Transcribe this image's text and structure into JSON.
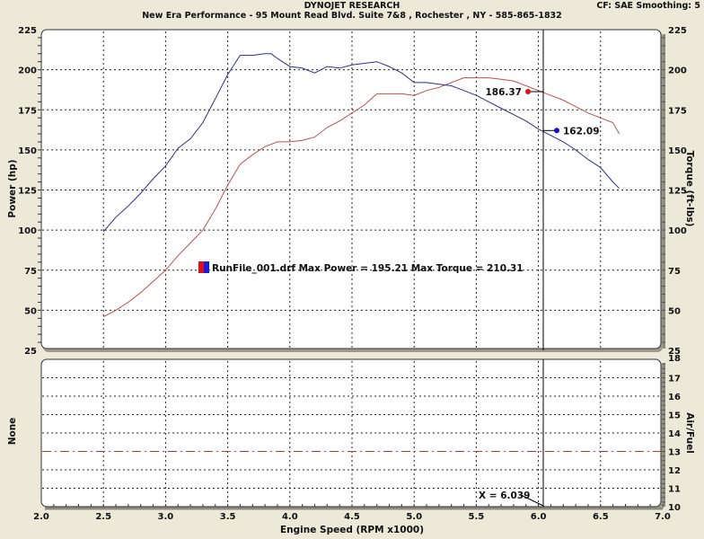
{
  "header": {
    "title": "DYNOJET RESEARCH",
    "subtitle": "New Era Performance - 95 Mount Read Blvd. Suite 7&8 , Rochester , NY - 585-865-1832",
    "settings": "CF: SAE  Smoothing: 5"
  },
  "legend": {
    "text": "RunFile_001.drf Max Power = 195.21 Max Torque = 210.31"
  },
  "cursor": {
    "label": "X = 6.039",
    "x": 6.039,
    "power_value": "186.37",
    "torque_value": "162.09"
  },
  "colors": {
    "power": "#c0504d",
    "torque": "#2b2f8f",
    "af_reference": "#c0392b",
    "background": "#ece9d8",
    "plot_bg": "#ffffff"
  },
  "chart_data": [
    {
      "type": "line",
      "title": "DYNOJET RESEARCH",
      "xlabel": "Engine Speed (RPM x1000)",
      "ylabel": "Power (hp)",
      "ylabel_right": "Torque (ft-lbs)",
      "xlim": [
        2.0,
        7.0
      ],
      "ylim": [
        25,
        225
      ],
      "x_ticks": [
        "2.0",
        "2.5",
        "3.0",
        "3.5",
        "4.0",
        "4.5",
        "5.0",
        "5.5",
        "6.0",
        "6.5",
        "7.0"
      ],
      "y_ticks": [
        "25",
        "50",
        "75",
        "100",
        "125",
        "150",
        "175",
        "200",
        "225"
      ],
      "grid": true,
      "legend": [
        "RunFile_001.drf Max Power = 195.21 Max Torque = 210.31"
      ],
      "series": [
        {
          "name": "Power (hp)",
          "color": "#c0504d",
          "x": [
            2.5,
            2.6,
            2.7,
            2.8,
            2.9,
            3.0,
            3.1,
            3.2,
            3.3,
            3.4,
            3.5,
            3.6,
            3.7,
            3.8,
            3.9,
            4.0,
            4.1,
            4.2,
            4.3,
            4.4,
            4.5,
            4.6,
            4.7,
            4.8,
            4.9,
            5.0,
            5.1,
            5.2,
            5.3,
            5.4,
            5.5,
            5.6,
            5.7,
            5.8,
            5.9,
            6.0,
            6.1,
            6.2,
            6.3,
            6.4,
            6.5,
            6.6,
            6.65
          ],
          "values": [
            46,
            50,
            55,
            61,
            68,
            75,
            84,
            92,
            100,
            113,
            128,
            141,
            147,
            152,
            155,
            155,
            156,
            158,
            164,
            168,
            173,
            178,
            185,
            185,
            185,
            184,
            187,
            189,
            192,
            195,
            195,
            195,
            194,
            193,
            190,
            187,
            184,
            181,
            177,
            173,
            170,
            167,
            160
          ]
        },
        {
          "name": "Torque (ft-lbs)",
          "color": "#2b2f8f",
          "x": [
            2.5,
            2.6,
            2.7,
            2.8,
            2.9,
            3.0,
            3.1,
            3.2,
            3.3,
            3.4,
            3.5,
            3.6,
            3.7,
            3.8,
            3.85,
            3.9,
            4.0,
            4.1,
            4.2,
            4.3,
            4.4,
            4.5,
            4.6,
            4.7,
            4.8,
            4.9,
            5.0,
            5.1,
            5.2,
            5.3,
            5.4,
            5.5,
            5.6,
            5.7,
            5.8,
            5.9,
            6.0,
            6.1,
            6.2,
            6.3,
            6.4,
            6.5,
            6.6,
            6.65
          ],
          "values": [
            99,
            108,
            115,
            123,
            132,
            140,
            151,
            157,
            167,
            182,
            197,
            209,
            209,
            210,
            210,
            207,
            202,
            201,
            198,
            202,
            201,
            203,
            204,
            205,
            202,
            198,
            192,
            192,
            191,
            190,
            187,
            184,
            180,
            176,
            172,
            168,
            163,
            159,
            155,
            150,
            144,
            139,
            130,
            126
          ]
        }
      ],
      "annotations": [
        {
          "x": 6.039,
          "value": 186.37,
          "series": "Power (hp)"
        },
        {
          "x": 6.039,
          "value": 162.09,
          "series": "Torque (ft-lbs)"
        }
      ]
    },
    {
      "type": "line",
      "xlabel": "Engine Speed (RPM x1000)",
      "ylabel": "None",
      "ylabel_right": "Air/Fuel",
      "xlim": [
        2.0,
        7.0
      ],
      "ylim": [
        10,
        18
      ],
      "y_ticks": [
        "10",
        "11",
        "12",
        "13",
        "14",
        "15",
        "16",
        "17",
        "18"
      ],
      "grid": true,
      "series": [
        {
          "name": "A/F reference",
          "color": "#c0392b",
          "x": [
            2.0,
            7.0
          ],
          "values": [
            13,
            13
          ]
        }
      ],
      "annotations": [
        {
          "text": "X = 6.039",
          "x": 6.039
        }
      ]
    }
  ]
}
